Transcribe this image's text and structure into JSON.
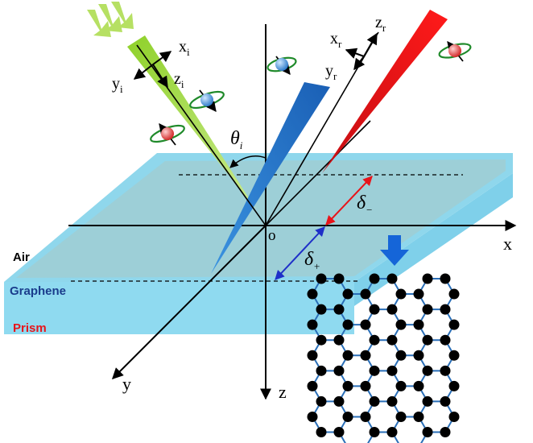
{
  "axes": {
    "x": "x",
    "y": "y",
    "z": "z",
    "origin": "o"
  },
  "incident": {
    "x": "x",
    "x_sub": "i",
    "y": "y",
    "y_sub": "i",
    "z": "z",
    "z_sub": "i"
  },
  "reflected": {
    "x": "x",
    "x_sub": "r",
    "y": "y",
    "y_sub": "r",
    "z": "z",
    "z_sub": "r"
  },
  "angle": {
    "symbol": "θ",
    "sub": "i"
  },
  "shifts": {
    "minus_symbol": "δ",
    "minus_sub": "−",
    "plus_symbol": "δ",
    "plus_sub": "+"
  },
  "layers": {
    "air": "Air",
    "graphene": "Graphene",
    "prism": "Prism"
  },
  "colors": {
    "incident_beam": "#7fc225",
    "blue_beam": "#1f6fc4",
    "reflected_beam": "#e8141a",
    "slab_top": "#8fd7ec",
    "slab_side": "#7fd0ea",
    "shift_minus_arrow": "#e8141a",
    "shift_plus_arrow": "#1e2fc8",
    "graphene_bond": "#2a6fb8",
    "graphene_atom": "#000000",
    "graphene_label": "#1a3c8c",
    "prism_label": "#e8141a",
    "zoom_arrow": "#1565d8"
  },
  "icons": {
    "incident_light": "wavy-arrows-icon",
    "spin_particles": "spin-rotation-icon",
    "zoom": "down-arrow-icon"
  }
}
